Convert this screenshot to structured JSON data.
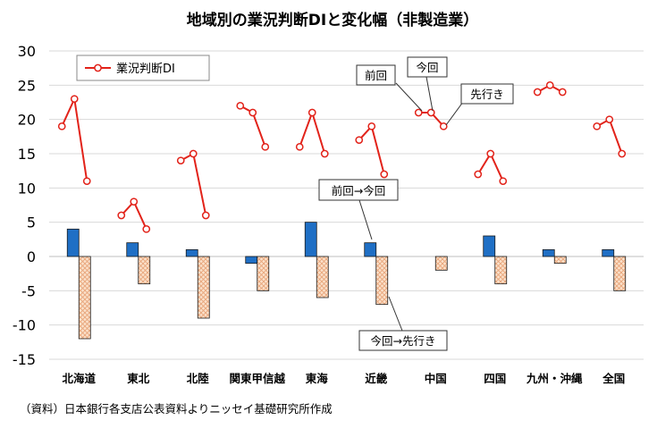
{
  "chart_data": {
    "type": "bar+line",
    "title": "地域別の業況判断DIと変化幅（非製造業）",
    "source": "（資料）日本銀行各支店公表資料よりニッセイ基礎研究所作成",
    "ylim": [
      -15,
      30
    ],
    "yticks": [
      -15,
      -10,
      -5,
      0,
      5,
      10,
      15,
      20,
      25,
      30
    ],
    "grid": true,
    "categories": [
      "北海道",
      "東北",
      "北陸",
      "関東甲信越",
      "東海",
      "近畿",
      "中国",
      "四国",
      "九州・沖縄",
      "全国"
    ],
    "line_series": {
      "name": "業況判断DI",
      "color": "#e2231a",
      "points_label": [
        "前回",
        "今回",
        "先行き"
      ],
      "values": [
        [
          19,
          23,
          11
        ],
        [
          6,
          8,
          4
        ],
        [
          14,
          15,
          6
        ],
        [
          22,
          21,
          16
        ],
        [
          16,
          21,
          15
        ],
        [
          17,
          19,
          12
        ],
        [
          21,
          21,
          19
        ],
        [
          12,
          15,
          11
        ],
        [
          24,
          25,
          24
        ],
        [
          19,
          20,
          15
        ]
      ]
    },
    "bar_series": [
      {
        "name": "前回→今回",
        "color": "#1f6fc5",
        "values": [
          4,
          2,
          1,
          -1,
          5,
          2,
          0,
          3,
          1,
          1
        ]
      },
      {
        "name": "今回→先行き",
        "color": "#f6c9a4",
        "values": [
          -12,
          -4,
          -9,
          -5,
          -6,
          -7,
          -2,
          -4,
          -1,
          -5
        ]
      }
    ],
    "annotations": [
      "前回",
      "今回",
      "先行き",
      "前回→今回",
      "今回→先行き"
    ],
    "legend_position": "top-left"
  }
}
